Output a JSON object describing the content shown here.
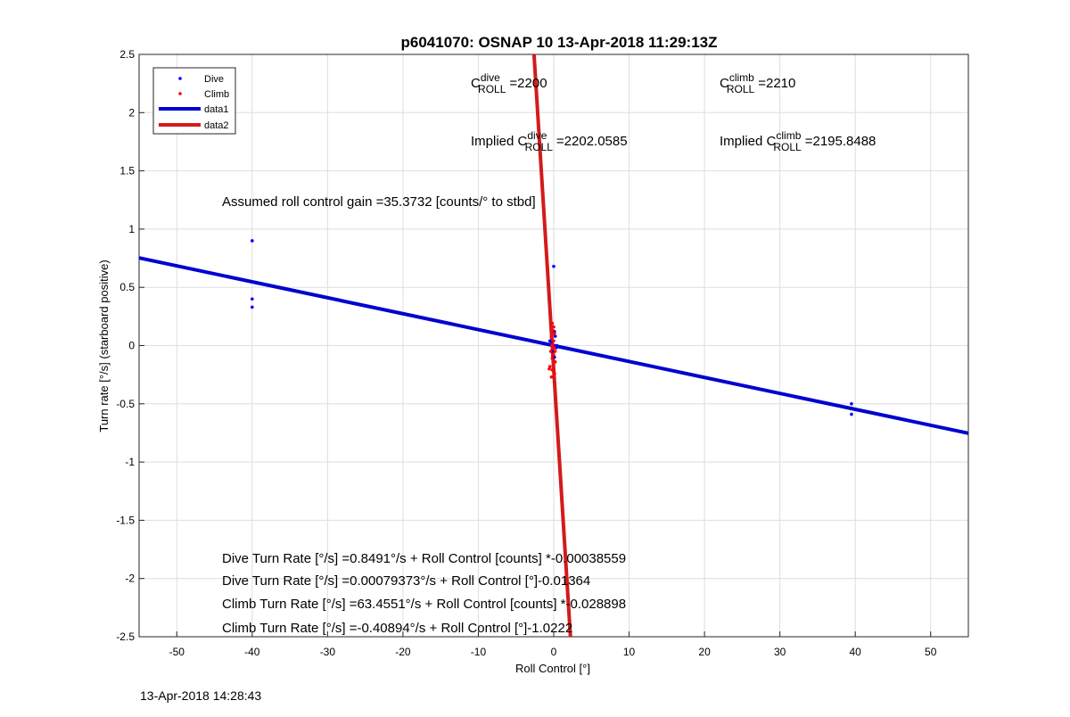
{
  "chart_data": {
    "type": "scatter",
    "title": "p6041070: OSNAP 10 13-Apr-2018 11:29:13Z",
    "xlabel": "Roll Control [°]",
    "ylabel": "Turn rate [°/s] (starboard positive)",
    "xlim": [
      -55,
      55
    ],
    "ylim": [
      -2.5,
      2.5
    ],
    "x_ticks": [
      "-50",
      "-40",
      "-30",
      "-20",
      "-10",
      "0",
      "10",
      "20",
      "30",
      "40",
      "50"
    ],
    "y_ticks": [
      "2.5",
      "2",
      "1.5",
      "1",
      "0.5",
      "0",
      "-0.5",
      "-1",
      "-1.5",
      "-2",
      "-2.5"
    ],
    "grid": true,
    "legend_position": "top-left",
    "series": [
      {
        "name": "Dive",
        "kind": "points",
        "color": "#0000ff",
        "points": [
          [
            -40,
            0.9
          ],
          [
            -40,
            0.4
          ],
          [
            -40,
            0.33
          ],
          [
            39.5,
            -0.5
          ],
          [
            39.5,
            -0.59
          ],
          [
            0,
            0.68
          ],
          [
            0.1,
            0.12
          ],
          [
            0.2,
            0.08
          ],
          [
            -0.3,
            0.02
          ],
          [
            0.4,
            0.0
          ],
          [
            -0.2,
            -0.05
          ],
          [
            0.1,
            -0.1
          ],
          [
            0.3,
            -0.02
          ],
          [
            -0.5,
            0.04
          ]
        ]
      },
      {
        "name": "Climb",
        "kind": "points",
        "color": "#ff0000",
        "points": [
          [
            -0.2,
            0.19
          ],
          [
            0.0,
            0.16
          ],
          [
            -0.1,
            0.13
          ],
          [
            0.1,
            0.1
          ],
          [
            -0.3,
            0.07
          ],
          [
            0.0,
            0.04
          ],
          [
            -0.2,
            0.01
          ],
          [
            0.1,
            -0.02
          ],
          [
            -0.4,
            -0.05
          ],
          [
            0.0,
            -0.08
          ],
          [
            -0.2,
            -0.11
          ],
          [
            0.2,
            -0.14
          ],
          [
            -0.5,
            -0.18
          ],
          [
            -0.2,
            -0.21
          ],
          [
            0.1,
            -0.24
          ],
          [
            -0.3,
            -0.27
          ],
          [
            -0.6,
            -0.2
          ],
          [
            0.2,
            -0.05
          ]
        ]
      },
      {
        "name": "data1",
        "kind": "line",
        "color": "#0000d0",
        "x": [
          -55,
          55
        ],
        "y": [
          0.7526,
          -0.7526
        ]
      },
      {
        "name": "data2",
        "kind": "line",
        "color": "#d41a1a",
        "x": [
          -2.614,
          2.217
        ],
        "y": [
          2.5,
          -2.5
        ]
      }
    ],
    "annotations": [
      {
        "id": "c_dive",
        "base": "C",
        "sup": "dive",
        "sub": "ROLL",
        "value": "=2200"
      },
      {
        "id": "c_climb",
        "base": "C",
        "sup": "climb",
        "sub": "ROLL",
        "value": "=2210"
      },
      {
        "id": "implied_dive",
        "prefix": "Implied C",
        "sup": "dive",
        "sub": "ROLL",
        "value": "=2202.0585"
      },
      {
        "id": "implied_climb",
        "prefix": "Implied C",
        "sup": "climb",
        "sub": "ROLL",
        "value": "=2195.8488"
      },
      {
        "id": "gain",
        "text": "Assumed roll control gain =35.3732 [counts/° to stbd]"
      },
      {
        "id": "eq1",
        "text": "Dive Turn Rate [°/s] =0.8491°/s + Roll Control [counts] *-0.00038559"
      },
      {
        "id": "eq2",
        "text": "Dive Turn Rate [°/s] =0.00079373°/s + Roll Control [°]-0.01364"
      },
      {
        "id": "eq3",
        "text": "Climb Turn Rate [°/s] =63.4551°/s + Roll Control [counts] *-0.028898"
      },
      {
        "id": "eq4",
        "text": "Climb Turn Rate [°/s] =-0.40894°/s + Roll Control [°]-1.0222"
      }
    ]
  },
  "footer": {
    "timestamp": "13-Apr-2018 14:28:43"
  }
}
